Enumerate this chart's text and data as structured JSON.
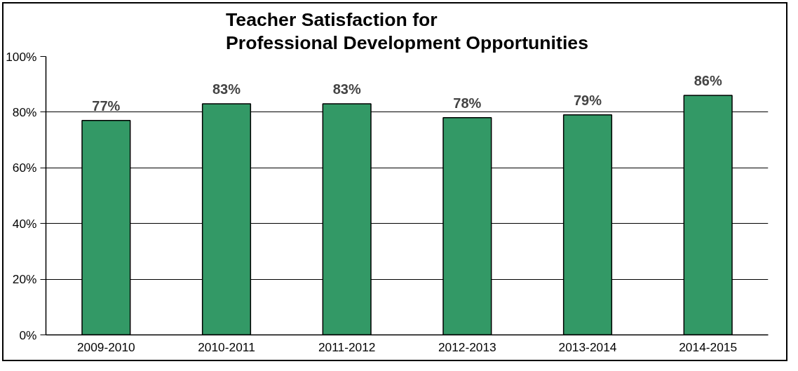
{
  "chart_data": {
    "type": "bar",
    "title": "Teacher Satisfaction for\nProfessional Development Opportunities",
    "categories": [
      "2009-2010",
      "2010-2011",
      "2011-2012",
      "2012-2013",
      "2013-2014",
      "2014-2015"
    ],
    "values": [
      77,
      83,
      83,
      78,
      79,
      86
    ],
    "value_labels": [
      "77%",
      "83%",
      "83%",
      "78%",
      "79%",
      "86%"
    ],
    "color": "#339966",
    "ylim": [
      0,
      100
    ],
    "yticks": [
      {
        "value": 0,
        "label": "0%"
      },
      {
        "value": 20,
        "label": "20%"
      },
      {
        "value": 40,
        "label": "40%"
      },
      {
        "value": 60,
        "label": "60%"
      },
      {
        "value": 80,
        "label": "80%"
      },
      {
        "value": 100,
        "label": "100%"
      }
    ],
    "grid": "y"
  }
}
